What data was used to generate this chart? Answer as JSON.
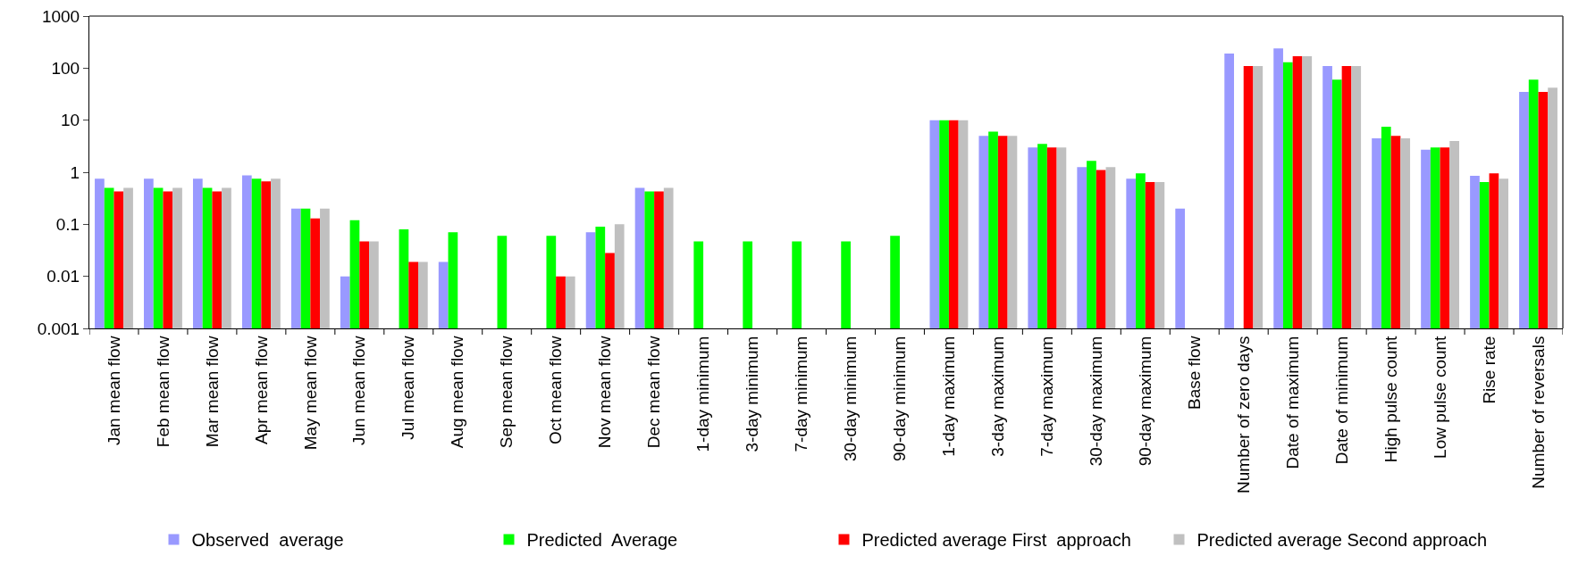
{
  "chart_data": {
    "type": "bar",
    "log": true,
    "legend": "bottom",
    "categories": [
      "Jan mean flow",
      "Feb mean flow",
      "Mar mean flow",
      "Apr mean flow",
      "May mean flow",
      "Jun mean flow",
      "Jul mean flow",
      "Aug mean flow",
      "Sep mean flow",
      "Oct mean flow",
      "Nov mean flow",
      "Dec mean flow",
      "1-day minimum",
      "3-day minimum",
      "7-day minimum",
      "30-day minimum",
      "90-day minimum",
      "1-day maximum",
      "3-day maximum",
      "7-day maximum",
      "30-day maximum",
      "90-day maximum",
      "Base flow",
      "Number of zero days",
      "Date of maximum",
      "Date of minimum",
      "High pulse count",
      "Low pulse count",
      "Rise rate",
      "Number of reversals"
    ],
    "ylim": [
      0.001,
      1000
    ],
    "yticks": [
      0.001,
      0.01,
      0.1,
      1,
      10,
      100,
      1000
    ],
    "series": [
      {
        "name": "Observed  average",
        "color": "#9999ff",
        "values": [
          0.75,
          0.75,
          0.75,
          0.87,
          0.2,
          0.01,
          null,
          0.019,
          null,
          null,
          0.07,
          0.5,
          null,
          null,
          null,
          null,
          null,
          10,
          5,
          3,
          1.25,
          0.75,
          0.2,
          190,
          240,
          110,
          4.5,
          2.7,
          0.85,
          35
        ]
      },
      {
        "name": "Predicted  Average",
        "color": "#00ff00",
        "values": [
          0.5,
          0.5,
          0.5,
          0.75,
          0.2,
          0.12,
          0.08,
          0.07,
          0.06,
          0.06,
          0.09,
          0.43,
          0.047,
          0.047,
          0.047,
          0.047,
          0.06,
          10,
          6,
          3.5,
          1.65,
          0.95,
          null,
          null,
          130,
          60,
          7.5,
          3,
          0.65,
          60
        ]
      },
      {
        "name": "Predicted average First  approach",
        "color": "#ff0000",
        "values": [
          0.43,
          0.43,
          0.43,
          0.67,
          0.13,
          0.047,
          0.019,
          null,
          null,
          0.01,
          0.028,
          0.43,
          null,
          null,
          null,
          null,
          null,
          10,
          5,
          3,
          1.1,
          0.65,
          null,
          110,
          170,
          110,
          5,
          3,
          0.95,
          35
        ]
      },
      {
        "name": "Predicted average Second approach",
        "color": "#c0c0c0",
        "values": [
          0.5,
          0.5,
          0.5,
          0.75,
          0.2,
          0.047,
          0.019,
          null,
          null,
          0.01,
          0.1,
          0.5,
          null,
          null,
          null,
          null,
          null,
          10,
          5,
          3,
          1.25,
          0.65,
          null,
          110,
          170,
          110,
          4.5,
          4,
          0.75,
          42
        ]
      }
    ]
  }
}
